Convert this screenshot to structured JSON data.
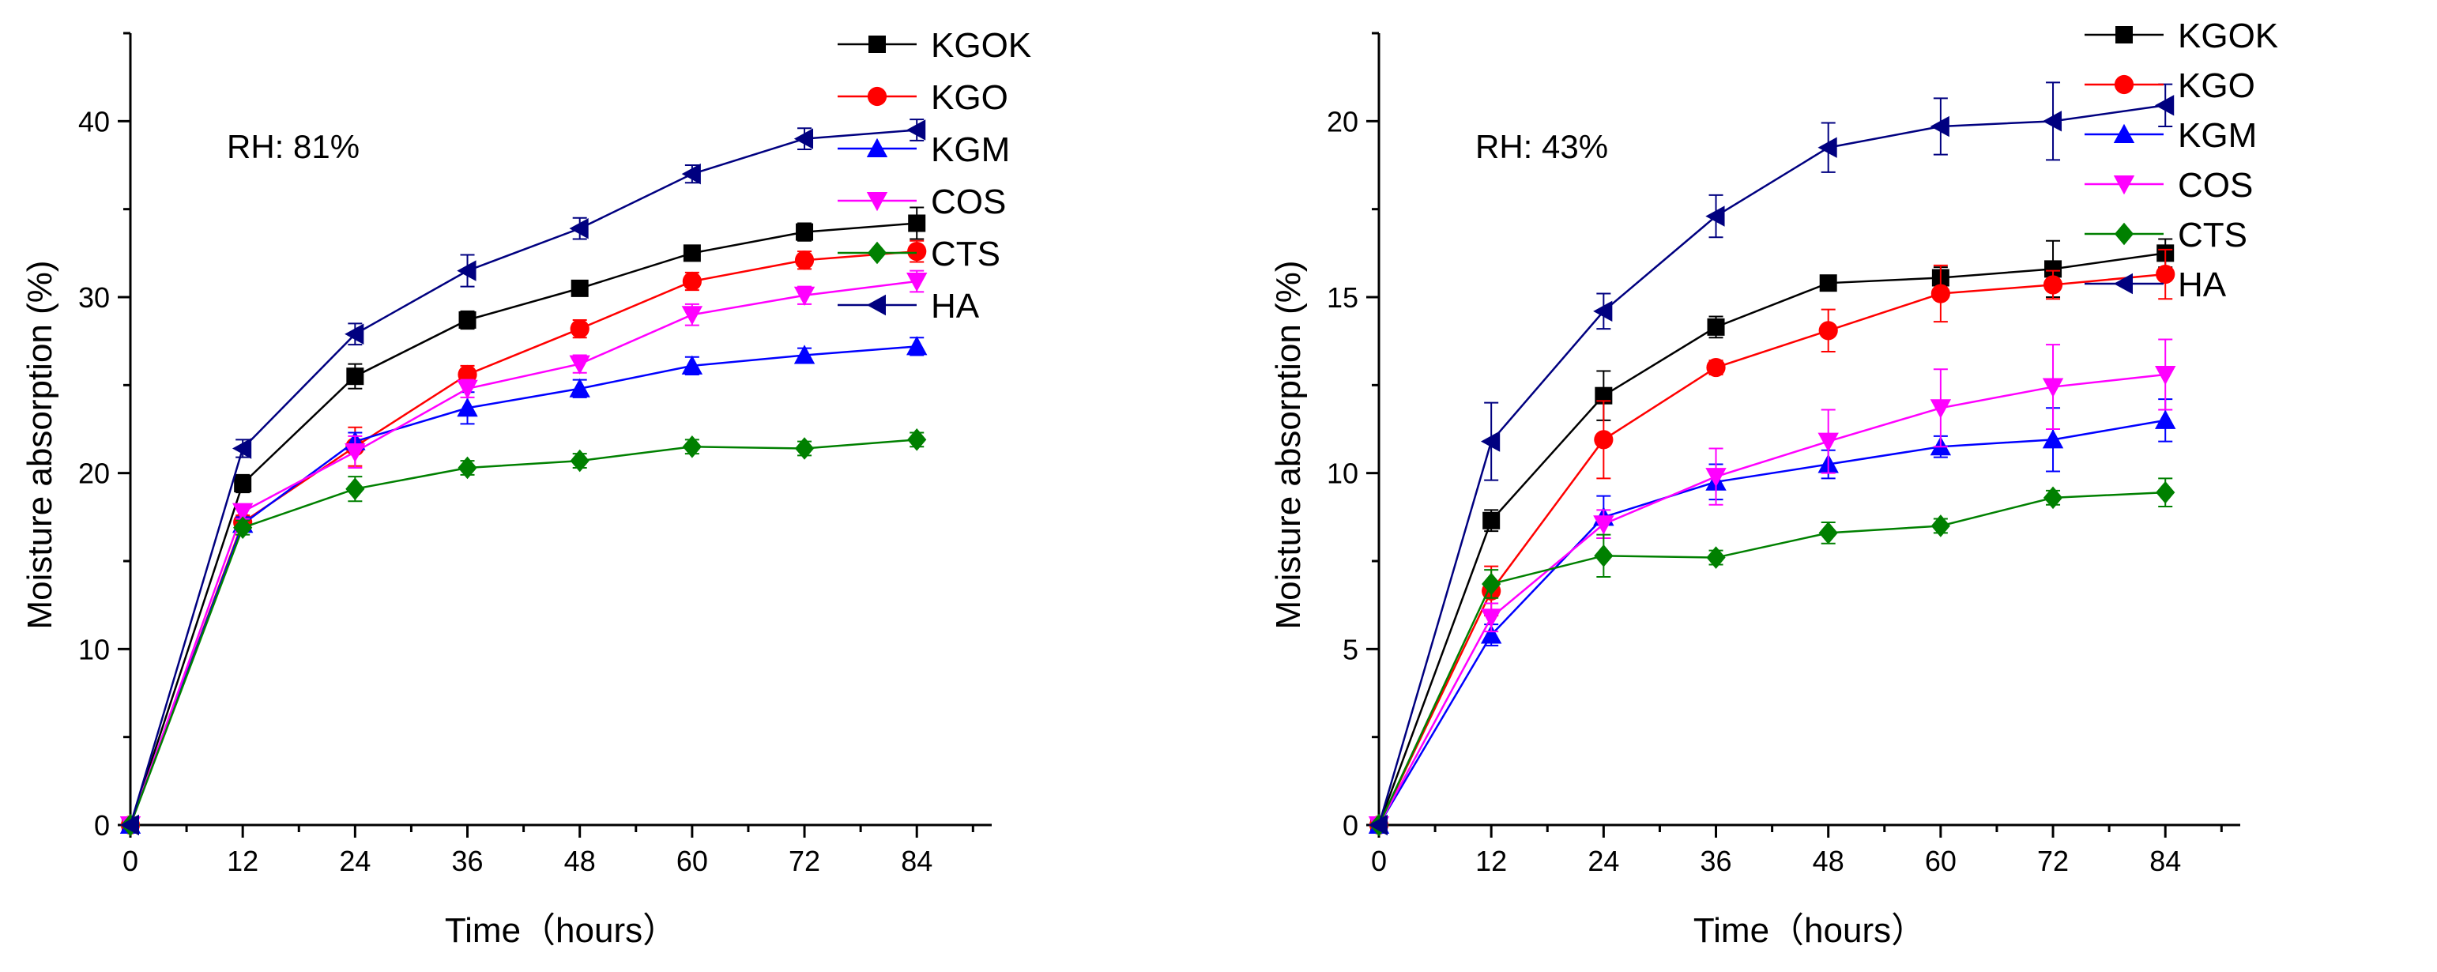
{
  "chart_data": [
    {
      "type": "line",
      "annotation": "RH: 81%",
      "xlabel": "Time（hours）",
      "ylabel": "Moisture absorption (%)",
      "xlim": [
        0,
        92
      ],
      "ylim": [
        0,
        45
      ],
      "x": [
        0,
        12,
        24,
        36,
        48,
        60,
        72,
        84
      ],
      "xticks": [
        0,
        12,
        24,
        36,
        48,
        60,
        72,
        84
      ],
      "yticks": [
        0,
        10,
        20,
        30,
        40
      ],
      "legend_position": "top-right",
      "series": [
        {
          "name": "KGOK",
          "color": "#000000",
          "marker": "square",
          "values": [
            0,
            19.4,
            25.5,
            28.7,
            30.5,
            32.5,
            33.7,
            34.2
          ],
          "errors": [
            0,
            0.5,
            0.7,
            0.5,
            0.4,
            0.4,
            0.5,
            0.9
          ]
        },
        {
          "name": "KGO",
          "color": "#ff0000",
          "marker": "circle",
          "values": [
            0,
            17.2,
            21.5,
            25.6,
            28.2,
            30.9,
            32.1,
            32.6
          ],
          "errors": [
            0,
            0.4,
            1.1,
            0.5,
            0.5,
            0.5,
            0.5,
            0.6
          ]
        },
        {
          "name": "KGM",
          "color": "#0000ff",
          "marker": "triangle-up",
          "values": [
            0,
            17.1,
            21.8,
            23.7,
            24.8,
            26.1,
            26.7,
            27.2
          ],
          "errors": [
            0,
            0.4,
            0.5,
            0.9,
            0.5,
            0.5,
            0.4,
            0.5
          ]
        },
        {
          "name": "COS",
          "color": "#ff00ff",
          "marker": "triangle-down",
          "values": [
            0,
            17.8,
            21.2,
            24.8,
            26.2,
            29.0,
            30.1,
            30.9
          ],
          "errors": [
            0,
            0.4,
            0.9,
            0.5,
            0.5,
            0.6,
            0.5,
            0.6
          ]
        },
        {
          "name": "CTS",
          "color": "#008000",
          "marker": "diamond",
          "values": [
            0,
            16.9,
            19.1,
            20.3,
            20.7,
            21.5,
            21.4,
            21.9
          ],
          "errors": [
            0,
            0.4,
            0.7,
            0.4,
            0.4,
            0.4,
            0.4,
            0.4
          ]
        },
        {
          "name": "HA",
          "color": "#000080",
          "marker": "triangle-left",
          "values": [
            0,
            21.4,
            27.9,
            31.5,
            33.9,
            37.0,
            39.0,
            39.5
          ],
          "errors": [
            0,
            0.5,
            0.6,
            0.9,
            0.6,
            0.5,
            0.6,
            0.6
          ]
        }
      ]
    },
    {
      "type": "line",
      "annotation": "RH: 43%",
      "xlabel": "Time（hours）",
      "ylabel": "Moisture absorption (%)",
      "xlim": [
        0,
        92
      ],
      "ylim": [
        0,
        22.5
      ],
      "x": [
        0,
        12,
        24,
        36,
        48,
        60,
        72,
        84
      ],
      "xticks": [
        0,
        12,
        24,
        36,
        48,
        60,
        72,
        84
      ],
      "yticks": [
        0,
        5,
        10,
        15,
        20
      ],
      "legend_position": "top-right",
      "series": [
        {
          "name": "KGOK",
          "color": "#000000",
          "marker": "square",
          "values": [
            0,
            8.65,
            12.2,
            14.15,
            15.4,
            15.55,
            15.8,
            16.25
          ],
          "errors": [
            0,
            0.3,
            0.7,
            0.3,
            0.2,
            0.3,
            0.8,
            0.4
          ]
        },
        {
          "name": "KGO",
          "color": "#ff0000",
          "marker": "circle",
          "values": [
            0,
            6.65,
            10.95,
            13.0,
            14.05,
            15.1,
            15.35,
            15.65
          ],
          "errors": [
            0,
            0.7,
            1.1,
            0.2,
            0.6,
            0.8,
            0.4,
            0.7
          ]
        },
        {
          "name": "KGM",
          "color": "#0000ff",
          "marker": "triangle-up",
          "values": [
            0,
            5.4,
            8.75,
            9.75,
            10.25,
            10.75,
            10.95,
            11.5
          ],
          "errors": [
            0,
            0.3,
            0.6,
            0.5,
            0.4,
            0.3,
            0.9,
            0.6
          ]
        },
        {
          "name": "COS",
          "color": "#ff00ff",
          "marker": "triangle-down",
          "values": [
            0,
            5.9,
            8.55,
            9.9,
            10.9,
            11.85,
            12.45,
            12.8
          ],
          "errors": [
            0,
            0.4,
            0.4,
            0.8,
            0.9,
            1.1,
            1.2,
            1.0
          ]
        },
        {
          "name": "CTS",
          "color": "#008000",
          "marker": "diamond",
          "values": [
            0,
            6.85,
            7.65,
            7.6,
            8.3,
            8.5,
            9.3,
            9.45
          ],
          "errors": [
            0,
            0.4,
            0.6,
            0.2,
            0.3,
            0.2,
            0.2,
            0.4
          ]
        },
        {
          "name": "HA",
          "color": "#000080",
          "marker": "triangle-left",
          "values": [
            0,
            10.9,
            14.6,
            17.3,
            19.25,
            19.85,
            20.0,
            20.45
          ],
          "errors": [
            0,
            1.1,
            0.5,
            0.6,
            0.7,
            0.8,
            1.1,
            0.6
          ]
        }
      ]
    }
  ]
}
